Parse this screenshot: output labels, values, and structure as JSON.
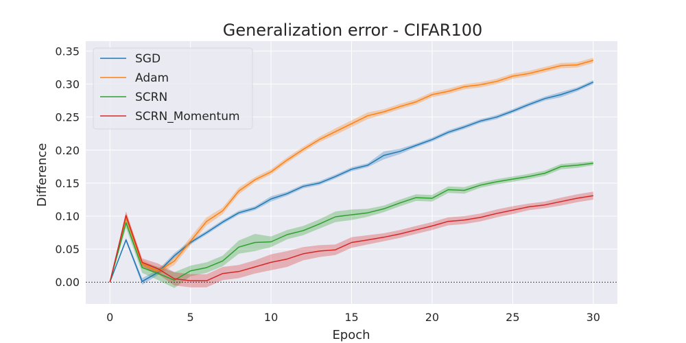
{
  "chart_data": {
    "type": "line",
    "title": "Generalization error - CIFAR100",
    "xlabel": "Epoch",
    "ylabel": "Difference",
    "xlim": [
      -1.5,
      31.5
    ],
    "ylim": [
      -0.033,
      0.365
    ],
    "x_ticks": [
      0,
      5,
      10,
      15,
      20,
      25,
      30
    ],
    "y_ticks": [
      0.0,
      0.05,
      0.1,
      0.15,
      0.2,
      0.25,
      0.3,
      0.35
    ],
    "y_tick_labels": [
      "0.00",
      "0.05",
      "0.10",
      "0.15",
      "0.20",
      "0.25",
      "0.30",
      "0.35"
    ],
    "grid": true,
    "background": "#eaeaf2",
    "legend_position": "top-left",
    "reference_line": {
      "y": 0,
      "style": "dotted",
      "color": "#000000"
    },
    "x": [
      0,
      1,
      2,
      3,
      4,
      5,
      6,
      7,
      8,
      9,
      10,
      11,
      12,
      13,
      14,
      15,
      16,
      17,
      18,
      19,
      20,
      21,
      22,
      23,
      24,
      25,
      26,
      27,
      28,
      29,
      30
    ],
    "series": [
      {
        "name": "SGD",
        "color": "#1f77b4",
        "values": [
          0.0,
          0.064,
          0.001,
          0.015,
          0.04,
          0.06,
          0.075,
          0.091,
          0.105,
          0.112,
          0.126,
          0.134,
          0.145,
          0.15,
          0.16,
          0.171,
          0.177,
          0.192,
          0.198,
          0.207,
          0.216,
          0.227,
          0.235,
          0.244,
          0.25,
          0.259,
          0.269,
          0.278,
          0.284,
          0.292,
          0.303
        ],
        "band": [
          0,
          0.003,
          0.005,
          0.004,
          0.004,
          0.003,
          0.003,
          0.003,
          0.003,
          0.003,
          0.004,
          0.003,
          0.003,
          0.003,
          0.003,
          0.003,
          0.003,
          0.006,
          0.004,
          0.003,
          0.003,
          0.003,
          0.003,
          0.003,
          0.003,
          0.003,
          0.003,
          0.003,
          0.004,
          0.003,
          0.003
        ]
      },
      {
        "name": "Adam",
        "color": "#ff7f0e",
        "values": [
          0.0,
          0.098,
          0.028,
          0.016,
          0.032,
          0.062,
          0.092,
          0.108,
          0.138,
          0.155,
          0.167,
          0.185,
          0.201,
          0.216,
          0.228,
          0.24,
          0.252,
          0.258,
          0.266,
          0.273,
          0.284,
          0.289,
          0.296,
          0.299,
          0.304,
          0.312,
          0.316,
          0.322,
          0.328,
          0.329,
          0.336
        ],
        "band": [
          0,
          0.008,
          0.006,
          0.005,
          0.006,
          0.006,
          0.006,
          0.005,
          0.005,
          0.004,
          0.004,
          0.004,
          0.004,
          0.004,
          0.005,
          0.005,
          0.005,
          0.004,
          0.004,
          0.004,
          0.004,
          0.004,
          0.004,
          0.004,
          0.004,
          0.004,
          0.004,
          0.004,
          0.004,
          0.004,
          0.004
        ]
      },
      {
        "name": "SCRN",
        "color": "#2ca02c",
        "values": [
          0.0,
          0.09,
          0.022,
          0.013,
          0.003,
          0.017,
          0.022,
          0.032,
          0.053,
          0.06,
          0.061,
          0.072,
          0.078,
          0.088,
          0.099,
          0.102,
          0.105,
          0.111,
          0.12,
          0.128,
          0.127,
          0.14,
          0.139,
          0.147,
          0.152,
          0.156,
          0.16,
          0.165,
          0.175,
          0.177,
          0.18
        ],
        "band": [
          0,
          0.008,
          0.008,
          0.01,
          0.012,
          0.008,
          0.008,
          0.008,
          0.01,
          0.013,
          0.008,
          0.007,
          0.007,
          0.007,
          0.008,
          0.008,
          0.006,
          0.005,
          0.005,
          0.005,
          0.005,
          0.005,
          0.005,
          0.004,
          0.004,
          0.004,
          0.004,
          0.004,
          0.004,
          0.004,
          0.003
        ]
      },
      {
        "name": "SCRN_Momentum",
        "color": "#d62728",
        "values": [
          0.0,
          0.101,
          0.03,
          0.02,
          0.005,
          0.002,
          0.002,
          0.013,
          0.016,
          0.023,
          0.03,
          0.035,
          0.043,
          0.047,
          0.049,
          0.06,
          0.064,
          0.068,
          0.073,
          0.079,
          0.085,
          0.092,
          0.094,
          0.098,
          0.104,
          0.109,
          0.114,
          0.117,
          0.122,
          0.127,
          0.131
        ],
        "band": [
          0,
          0.006,
          0.006,
          0.008,
          0.01,
          0.01,
          0.01,
          0.01,
          0.01,
          0.01,
          0.012,
          0.012,
          0.01,
          0.009,
          0.008,
          0.008,
          0.007,
          0.006,
          0.006,
          0.006,
          0.006,
          0.006,
          0.006,
          0.006,
          0.006,
          0.006,
          0.005,
          0.005,
          0.006,
          0.006,
          0.006
        ]
      }
    ]
  }
}
